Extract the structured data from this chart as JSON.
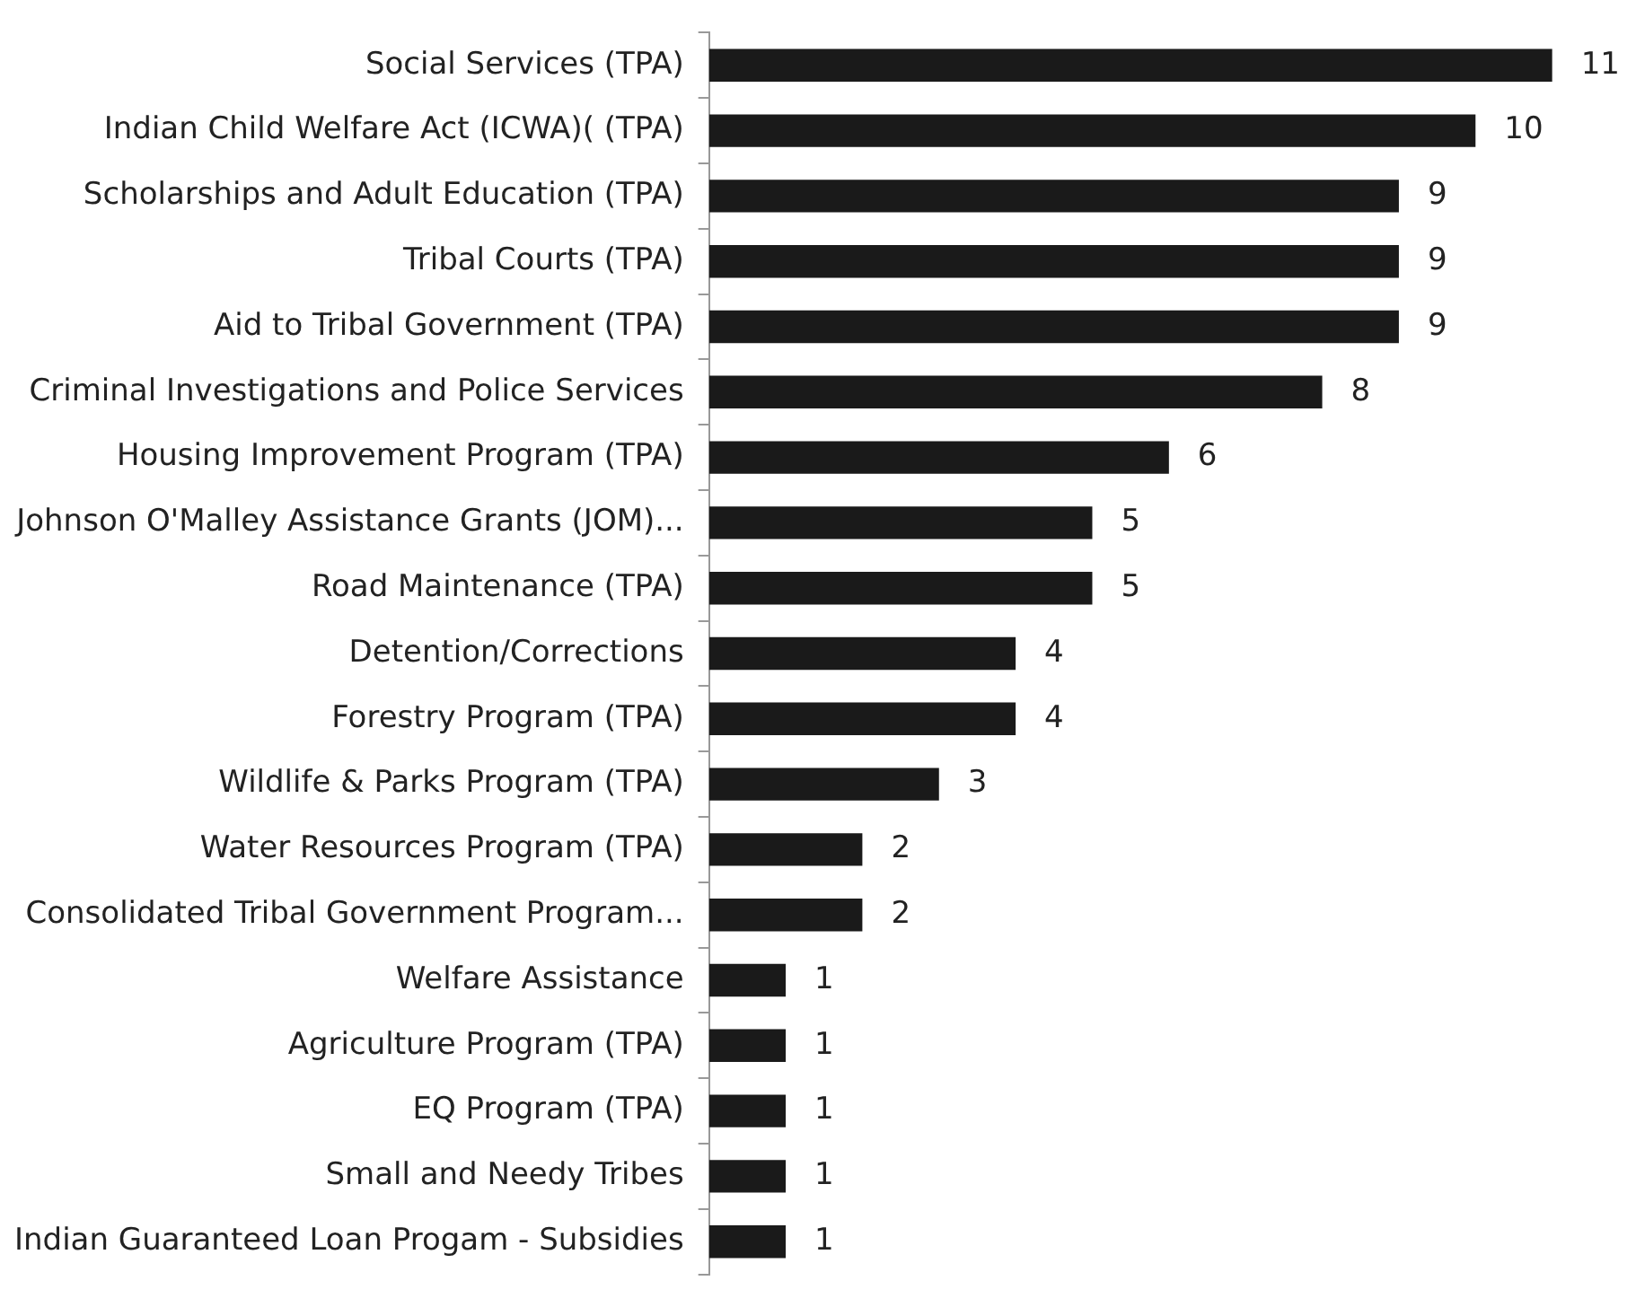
{
  "chart_data": {
    "type": "bar",
    "orientation": "horizontal",
    "data_labels": true,
    "categories": [
      "Social Services (TPA)",
      "Indian Child Welfare Act (ICWA)( (TPA)",
      "Scholarships and Adult Education (TPA)",
      "Tribal Courts (TPA)",
      "Aid to Tribal Government (TPA)",
      "Criminal Investigations and Police Services",
      "Housing Improvement Program (TPA)",
      "Johnson O'Malley Assistance Grants (JOM)...",
      "Road Maintenance (TPA)",
      "Detention/Corrections",
      "Forestry Program (TPA)",
      "Wildlife & Parks Program (TPA)",
      "Water Resources Program (TPA)",
      "Consolidated Tribal Government Program...",
      "Welfare Assistance",
      "Agriculture Program (TPA)",
      "EQ Program (TPA)",
      "Small and Needy Tribes",
      "Indian Guaranteed Loan Progam - Subsidies"
    ],
    "values": [
      11,
      10,
      9,
      9,
      9,
      8,
      6,
      5,
      5,
      4,
      4,
      3,
      2,
      2,
      1,
      1,
      1,
      1,
      1
    ],
    "color": "#1a1a1a"
  }
}
